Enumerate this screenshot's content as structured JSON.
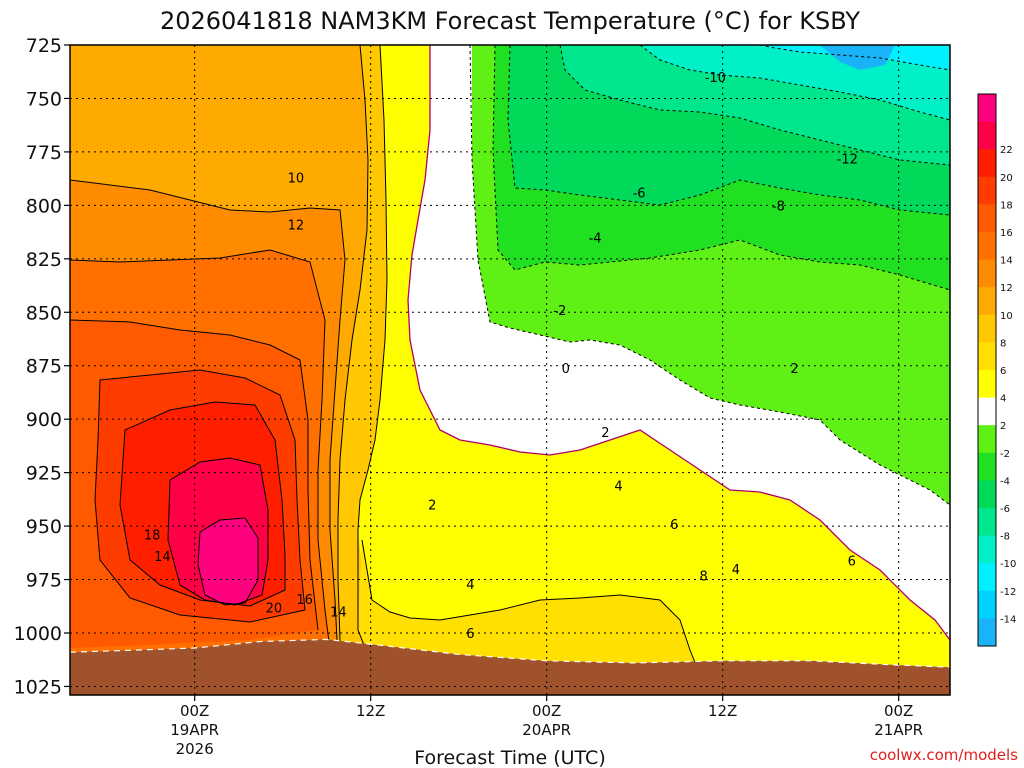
{
  "chart_data": {
    "type": "heatmap",
    "title": "2026041818 NAM3KM Forecast Temperature (°C) for KSBY",
    "xlabel": "Forecast Time (UTC)",
    "ylabel": "",
    "credit": "coolwx.com/models",
    "x_range_hours": [
      -8.5,
      51.5
    ],
    "y_pressure_levels": [
      725,
      750,
      775,
      800,
      825,
      850,
      875,
      900,
      925,
      950,
      975,
      1000,
      1025
    ],
    "y_range_hpa": [
      725,
      1029
    ],
    "x_ticks": [
      {
        "hour": 0,
        "label": "00Z",
        "label2": "19APR",
        "label3": "2026"
      },
      {
        "hour": 12,
        "label": "12Z",
        "label2": "",
        "label3": ""
      },
      {
        "hour": 24,
        "label": "00Z",
        "label2": "20APR",
        "label3": ""
      },
      {
        "hour": 36,
        "label": "12Z",
        "label2": "",
        "label3": ""
      },
      {
        "hour": 48,
        "label": "00Z",
        "label2": "21APR",
        "label3": ""
      }
    ],
    "colorbar": [
      {
        "label": "",
        "color": "#1ab3f7"
      },
      {
        "label": "-14",
        "color": "#00d2ff"
      },
      {
        "label": "-12",
        "color": "#00f0ff"
      },
      {
        "label": "-10",
        "color": "#00f0c8"
      },
      {
        "label": "-8",
        "color": "#00e68c"
      },
      {
        "label": "-6",
        "color": "#00d95a"
      },
      {
        "label": "-4",
        "color": "#21df21"
      },
      {
        "label": "-2",
        "color": "#5ff015"
      },
      {
        "label": "2",
        "color": "#ffffff"
      },
      {
        "label": "4",
        "color": "#ffff00"
      },
      {
        "label": "6",
        "color": "#ffe000"
      },
      {
        "label": "8",
        "color": "#ffc800"
      },
      {
        "label": "10",
        "color": "#ffaa00"
      },
      {
        "label": "12",
        "color": "#ff8c00"
      },
      {
        "label": "14",
        "color": "#ff7000"
      },
      {
        "label": "16",
        "color": "#ff5a00"
      },
      {
        "label": "18",
        "color": "#ff3c00"
      },
      {
        "label": "20",
        "color": "#ff1e00"
      },
      {
        "label": "22",
        "color": "#ff0046"
      },
      {
        "label": "",
        "color": "#ff007f"
      }
    ],
    "contour_labels": [
      {
        "text": "-10",
        "hour": 35.5,
        "p": 740
      },
      {
        "text": "-12",
        "hour": 44.5,
        "p": 778
      },
      {
        "text": "-6",
        "hour": 30.3,
        "p": 794
      },
      {
        "text": "-8",
        "hour": 39.8,
        "p": 800
      },
      {
        "text": "-4",
        "hour": 27.3,
        "p": 815
      },
      {
        "text": "-2",
        "hour": 24.9,
        "p": 849
      },
      {
        "text": "0",
        "hour": 25.3,
        "p": 876
      },
      {
        "text": "2",
        "hour": 40.9,
        "p": 876
      },
      {
        "text": "2",
        "hour": 28.0,
        "p": 906
      },
      {
        "text": "4",
        "hour": 28.9,
        "p": 931
      },
      {
        "text": "6",
        "hour": 32.7,
        "p": 949
      },
      {
        "text": "8",
        "hour": 34.7,
        "p": 973
      },
      {
        "text": "4",
        "hour": 36.9,
        "p": 970
      },
      {
        "text": "6",
        "hour": 44.8,
        "p": 966
      },
      {
        "text": "2",
        "hour": 16.2,
        "p": 940
      },
      {
        "text": "4",
        "hour": 18.8,
        "p": 977
      },
      {
        "text": "6",
        "hour": 18.8,
        "p": 1000
      },
      {
        "text": "10",
        "hour": 6.9,
        "p": 787
      },
      {
        "text": "12",
        "hour": 6.9,
        "p": 809
      },
      {
        "text": "18",
        "hour": -2.9,
        "p": 954
      },
      {
        "text": "14",
        "hour": -2.2,
        "p": 964
      },
      {
        "text": "16",
        "hour": 7.5,
        "p": 984
      },
      {
        "text": "20",
        "hour": 5.4,
        "p": 988
      },
      {
        "text": "14",
        "hour": 9.8,
        "p": 990
      }
    ],
    "terrain": [
      {
        "hour": -8.5,
        "p": 1009
      },
      {
        "hour": -4.0,
        "p": 1008
      },
      {
        "hour": 0.0,
        "p": 1007
      },
      {
        "hour": 4.5,
        "p": 1004
      },
      {
        "hour": 9.0,
        "p": 1003
      },
      {
        "hour": 13.0,
        "p": 1006
      },
      {
        "hour": 18.0,
        "p": 1010
      },
      {
        "hour": 24.0,
        "p": 1013
      },
      {
        "hour": 30.0,
        "p": 1014
      },
      {
        "hour": 36.0,
        "p": 1013
      },
      {
        "hour": 42.0,
        "p": 1013
      },
      {
        "hour": 48.0,
        "p": 1015
      },
      {
        "hour": 51.5,
        "p": 1016
      }
    ]
  }
}
